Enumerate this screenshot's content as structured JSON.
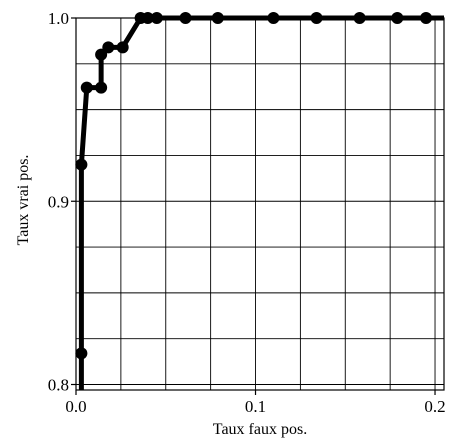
{
  "chart_data": {
    "type": "line",
    "title": "",
    "xlabel": "Taux faux pos.",
    "ylabel": "Taux vrai pos.",
    "xlim": [
      0.0,
      0.205
    ],
    "ylim": [
      0.797,
      1.0
    ],
    "grid": true,
    "x_ticks": [
      {
        "value": 0.0,
        "label": "0.0"
      },
      {
        "value": 0.1,
        "label": "0.1"
      },
      {
        "value": 0.2,
        "label": "0.2"
      }
    ],
    "y_ticks": [
      {
        "value": 0.8,
        "label": "0.8"
      },
      {
        "value": 0.9,
        "label": "0.9"
      },
      {
        "value": 1.0,
        "label": "1.0"
      }
    ],
    "x_gridlines": [
      0.0,
      0.025,
      0.05,
      0.075,
      0.1,
      0.125,
      0.15,
      0.175,
      0.2
    ],
    "y_gridlines": [
      0.8,
      0.825,
      0.85,
      0.875,
      0.9,
      0.925,
      0.95,
      0.975,
      1.0
    ],
    "series": [
      {
        "color": "#000000",
        "x": [
          0.003,
          0.003,
          0.003,
          0.006,
          0.014,
          0.014,
          0.018,
          0.026,
          0.036,
          0.04,
          0.045,
          0.061,
          0.079,
          0.11,
          0.134,
          0.158,
          0.179,
          0.195,
          0.205
        ],
        "y": [
          0.797,
          0.817,
          0.92,
          0.962,
          0.962,
          0.98,
          0.984,
          0.984,
          1.0,
          1.0,
          1.0,
          1.0,
          1.0,
          1.0,
          1.0,
          1.0,
          1.0,
          1.0,
          1.0
        ],
        "markers": [
          false,
          true,
          true,
          true,
          true,
          true,
          true,
          true,
          true,
          true,
          true,
          true,
          true,
          true,
          true,
          true,
          true,
          true,
          false
        ]
      }
    ]
  }
}
